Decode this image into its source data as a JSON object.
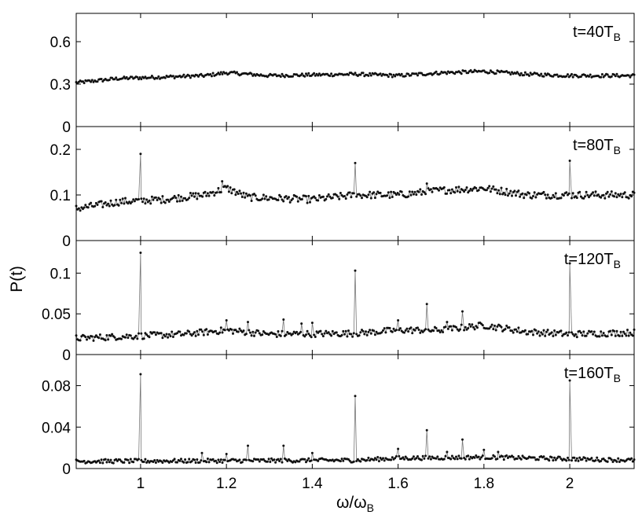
{
  "chart_data": {
    "type": "scatter",
    "ylabel": "P(t)",
    "xlabel": {
      "main": "ω/ω",
      "sub": "B"
    },
    "xlim": [
      0.85,
      2.15
    ],
    "xticks": [
      1,
      1.2,
      1.4,
      1.6,
      1.8,
      2
    ],
    "xtick_labels": [
      "1",
      "1.2",
      "1.4",
      "1.6",
      "1.8",
      "2"
    ],
    "grid": false,
    "panels": [
      {
        "label": {
          "main": "t=40T",
          "sub": "B"
        },
        "ylim": [
          0,
          0.8
        ],
        "yticks": [
          0,
          0.3,
          0.6
        ],
        "ytick_labels": [
          "0",
          "0.3",
          "0.6"
        ],
        "baseline": 0.35,
        "baseline_profile": [
          [
            0.85,
            0.31
          ],
          [
            0.95,
            0.34
          ],
          [
            1.05,
            0.35
          ],
          [
            1.15,
            0.36
          ],
          [
            1.2,
            0.38
          ],
          [
            1.3,
            0.36
          ],
          [
            1.5,
            0.37
          ],
          [
            1.6,
            0.36
          ],
          [
            1.7,
            0.38
          ],
          [
            1.8,
            0.39
          ],
          [
            1.9,
            0.37
          ],
          [
            2.0,
            0.36
          ],
          [
            2.15,
            0.36
          ]
        ],
        "noise": 0.012,
        "peaks": []
      },
      {
        "label": {
          "main": "t=80T",
          "sub": "B"
        },
        "ylim": [
          0,
          0.25
        ],
        "yticks": [
          0,
          0.1,
          0.2
        ],
        "ytick_labels": [
          "0",
          "0.1",
          "0.2"
        ],
        "baseline_profile": [
          [
            0.85,
            0.07
          ],
          [
            0.95,
            0.085
          ],
          [
            1.05,
            0.09
          ],
          [
            1.15,
            0.1
          ],
          [
            1.2,
            0.115
          ],
          [
            1.25,
            0.095
          ],
          [
            1.4,
            0.09
          ],
          [
            1.5,
            0.1
          ],
          [
            1.6,
            0.1
          ],
          [
            1.7,
            0.11
          ],
          [
            1.8,
            0.115
          ],
          [
            1.9,
            0.1
          ],
          [
            2.0,
            0.1
          ],
          [
            2.15,
            0.1
          ]
        ],
        "noise": 0.008,
        "peaks": [
          [
            1.0,
            0.19
          ],
          [
            1.19,
            0.13
          ],
          [
            1.5,
            0.17
          ],
          [
            1.667,
            0.125
          ],
          [
            2.0,
            0.175
          ]
        ]
      },
      {
        "label": {
          "main": "t=120T",
          "sub": "B"
        },
        "ylim": [
          0,
          0.14
        ],
        "yticks": [
          0,
          0.05,
          0.1
        ],
        "ytick_labels": [
          "0",
          "0.05",
          "0.1"
        ],
        "baseline_profile": [
          [
            0.85,
            0.02
          ],
          [
            0.95,
            0.022
          ],
          [
            1.1,
            0.025
          ],
          [
            1.2,
            0.03
          ],
          [
            1.3,
            0.025
          ],
          [
            1.5,
            0.026
          ],
          [
            1.6,
            0.03
          ],
          [
            1.7,
            0.03
          ],
          [
            1.8,
            0.036
          ],
          [
            1.9,
            0.028
          ],
          [
            2.0,
            0.025
          ],
          [
            2.15,
            0.027
          ]
        ],
        "noise": 0.004,
        "peaks": [
          [
            1.0,
            0.125
          ],
          [
            1.2,
            0.042
          ],
          [
            1.25,
            0.04
          ],
          [
            1.333,
            0.043
          ],
          [
            1.375,
            0.038
          ],
          [
            1.4,
            0.039
          ],
          [
            1.5,
            0.103
          ],
          [
            1.6,
            0.042
          ],
          [
            1.667,
            0.062
          ],
          [
            1.714,
            0.04
          ],
          [
            1.75,
            0.053
          ],
          [
            2.0,
            0.112
          ]
        ]
      },
      {
        "label": {
          "main": "t=160T",
          "sub": "B"
        },
        "ylim": [
          0,
          0.11
        ],
        "yticks": [
          0,
          0.04,
          0.08
        ],
        "ytick_labels": [
          "0",
          "0.04",
          "0.08"
        ],
        "baseline_profile": [
          [
            0.85,
            0.007
          ],
          [
            1.5,
            0.008
          ],
          [
            1.6,
            0.01
          ],
          [
            1.8,
            0.011
          ],
          [
            2.15,
            0.008
          ]
        ],
        "noise": 0.002,
        "peaks": [
          [
            1.0,
            0.091
          ],
          [
            1.143,
            0.015
          ],
          [
            1.2,
            0.014
          ],
          [
            1.25,
            0.022
          ],
          [
            1.333,
            0.022
          ],
          [
            1.4,
            0.015
          ],
          [
            1.5,
            0.07
          ],
          [
            1.6,
            0.019
          ],
          [
            1.667,
            0.037
          ],
          [
            1.714,
            0.016
          ],
          [
            1.75,
            0.028
          ],
          [
            1.8,
            0.018
          ],
          [
            1.833,
            0.016
          ],
          [
            2.0,
            0.085
          ]
        ]
      }
    ]
  }
}
